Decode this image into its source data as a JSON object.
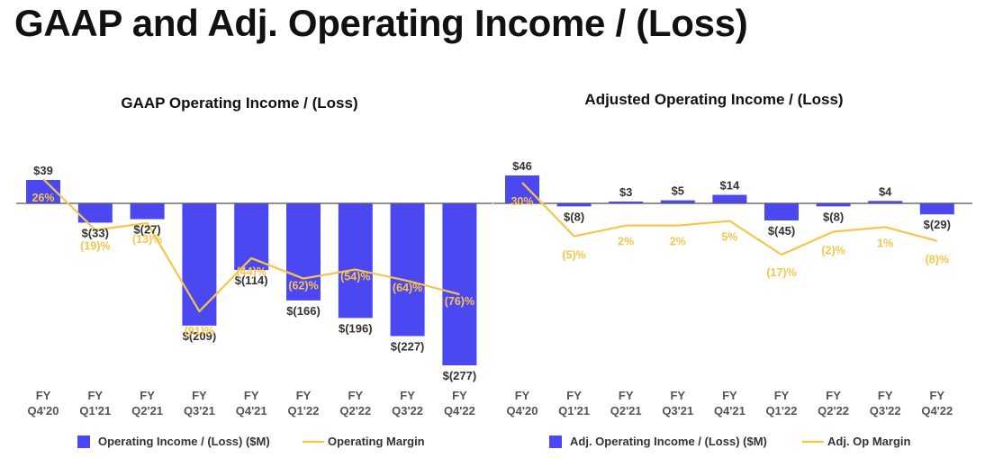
{
  "page": {
    "title": "GAAP and Adj. Operating Income / (Loss)"
  },
  "colors": {
    "bar": "#4B48F2",
    "line": "#F7C54A",
    "axis": "#555555"
  },
  "chart_data": [
    {
      "type": "bar",
      "title": "GAAP Operating Income / (Loss)",
      "categories": [
        "FY|Q4'20",
        "FY|Q1'21",
        "FY|Q2'21",
        "FY|Q3'21",
        "FY|Q4'21",
        "FY|Q1'22",
        "FY|Q2'22",
        "FY|Q3'22",
        "FY|Q4'22"
      ],
      "series": [
        {
          "name": "Operating Income / (Loss) ($M)",
          "kind": "bar",
          "values": [
            39,
            -33,
            -27,
            -209,
            -114,
            -166,
            -196,
            -227,
            -277
          ],
          "labels": [
            "$39",
            "$(33)",
            "$(27)",
            "$(209)",
            "$(114)",
            "$(166)",
            "$(196)",
            "$(227)",
            "$(277)"
          ]
        },
        {
          "name": "Operating Margin",
          "kind": "line",
          "values": [
            26,
            -19,
            -13,
            -91,
            -44,
            -62,
            -54,
            -64,
            -76
          ],
          "labels": [
            "26%",
            "(19)%",
            "(13)%",
            "(91)%",
            "(44)%",
            "(62)%",
            "(54)%",
            "(64)%",
            "(76)%"
          ]
        }
      ],
      "ylim": [
        -277,
        39
      ],
      "margin_ylim": [
        -100,
        40
      ]
    },
    {
      "type": "bar",
      "title": "Adjusted Operating Income / (Loss)",
      "categories": [
        "FY|Q4'20",
        "FY|Q1'21",
        "FY|Q2'21",
        "FY|Q3'21",
        "FY|Q4'21",
        "FY|Q1'22",
        "FY|Q2'22",
        "FY|Q3'22",
        "FY|Q4'22"
      ],
      "series": [
        {
          "name": "Adj. Operating Income / (Loss) ($M)",
          "kind": "bar",
          "values": [
            46,
            -8,
            3,
            5,
            14,
            -45,
            -8,
            4,
            -29
          ],
          "labels": [
            "$46",
            "$(8)",
            "$3",
            "$5",
            "$14",
            "$(45)",
            "$(8)",
            "$4",
            "$(29)"
          ]
        },
        {
          "name": "Adj. Op Margin",
          "kind": "line",
          "values": [
            30,
            -5,
            2,
            2,
            5,
            -17,
            -2,
            1,
            -8
          ],
          "labels": [
            "30%",
            "(5)%",
            "2%",
            "2%",
            "5%",
            "(17)%",
            "(2)%",
            "1%",
            "(8)%"
          ]
        }
      ],
      "ylim": [
        -60,
        50
      ],
      "margin_ylim": [
        -40,
        40
      ]
    }
  ]
}
